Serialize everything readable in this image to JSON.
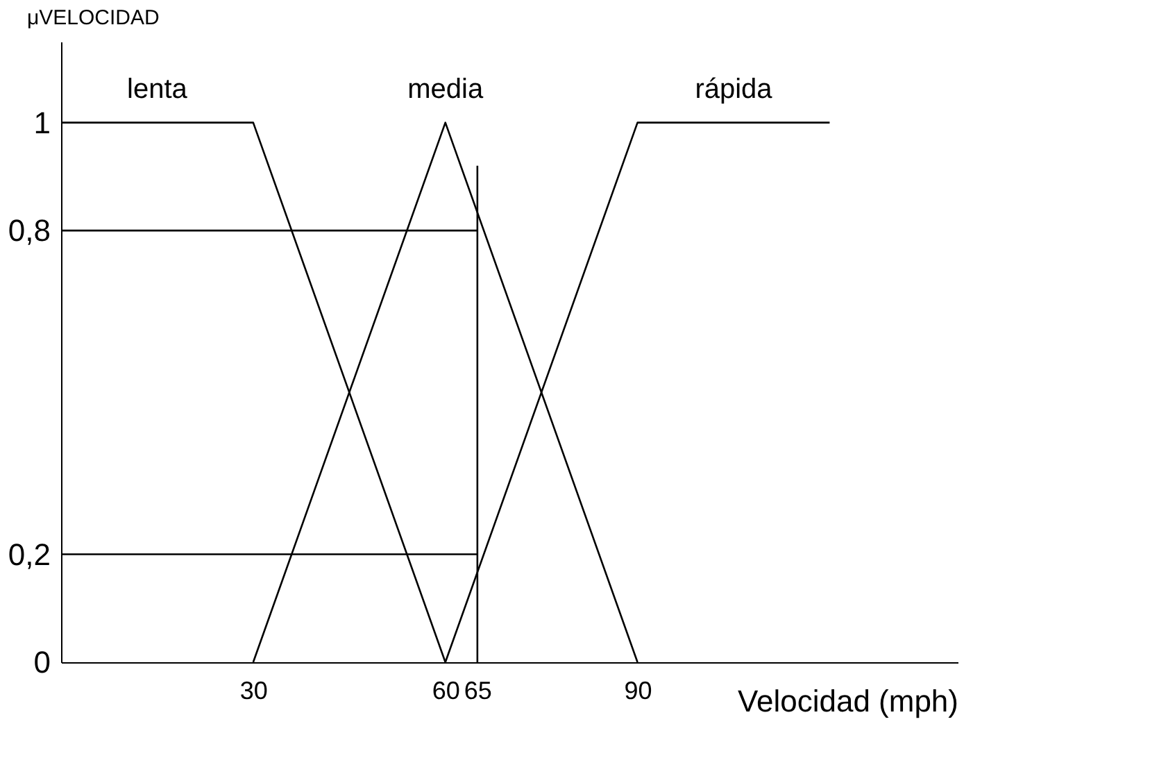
{
  "chart_data": {
    "type": "line",
    "xlabel": "Velocidad (mph)",
    "ylabel": "μVELOCIDAD",
    "xlim": [
      0,
      140
    ],
    "ylim": [
      0,
      1.15
    ],
    "xticks": [
      30,
      60,
      65,
      90
    ],
    "yticks": [
      0,
      {
        "value": 0.2,
        "label": "0,2"
      },
      {
        "value": 0.8,
        "label": "0,8"
      },
      1
    ],
    "grid": false,
    "series": [
      {
        "name": "lenta",
        "color": "#000000",
        "x": [
          0,
          30,
          60
        ],
        "values": [
          1,
          1,
          0
        ]
      },
      {
        "name": "media",
        "color": "#000000",
        "x": [
          30,
          60,
          90
        ],
        "values": [
          0,
          1,
          0
        ]
      },
      {
        "name": "rápida",
        "color": "#000000",
        "x": [
          60,
          90,
          120
        ],
        "values": [
          0,
          1,
          1
        ]
      },
      {
        "color": "#000000",
        "x": [
          0,
          65
        ],
        "values": [
          0.8,
          0.8
        ]
      },
      {
        "color": "#000000",
        "x": [
          0,
          65
        ],
        "values": [
          0.2,
          0.2
        ]
      },
      {
        "color": "#000000",
        "x": [
          65,
          65
        ],
        "values": [
          0,
          0.92
        ]
      }
    ]
  }
}
